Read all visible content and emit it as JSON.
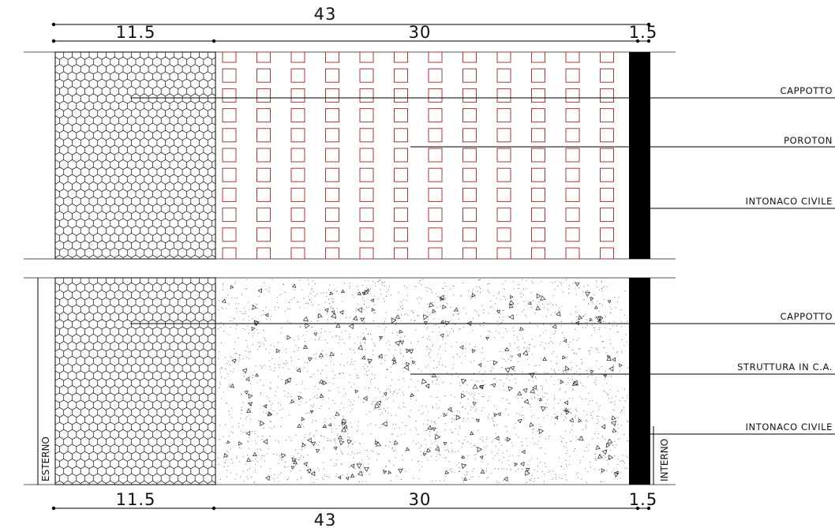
{
  "dimensions": {
    "top": {
      "total": "43",
      "insulation": "11.5",
      "core": "30",
      "plaster": "1.5"
    },
    "bottom": {
      "total": "43",
      "insulation": "11.5",
      "core": "30",
      "plaster": "1.5"
    }
  },
  "section_poroton": {
    "labels": {
      "insulation": "CAPPOTTO",
      "core": "POROTON",
      "plaster": "INTONACO  CIVILE"
    }
  },
  "section_concrete": {
    "labels": {
      "insulation": "CAPPOTTO",
      "core": "STRUTTURA  IN  C.A.",
      "plaster": "INTONACO  CIVILE"
    }
  },
  "sides": {
    "exterior": "ESTERNO",
    "interior": "INTERNO"
  },
  "colors": {
    "line": "#000000",
    "poroton_cells": "#a03a3a",
    "background": "#ffffff"
  }
}
